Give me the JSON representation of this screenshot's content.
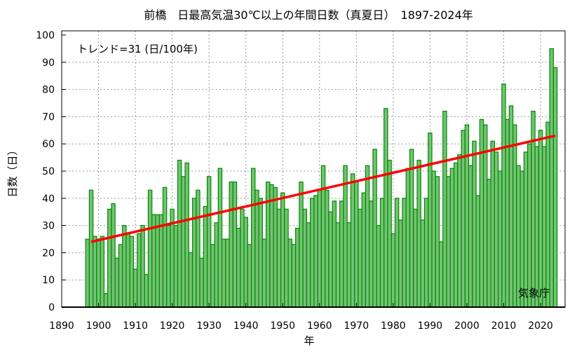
{
  "chart_data": {
    "type": "bar",
    "title": "前橋　日最高気温30℃以上の年間日数（真夏日）　1897-2024年",
    "xlabel": "年",
    "ylabel": "日数（日）",
    "xlim": [
      1890,
      2027
    ],
    "ylim": [
      0,
      100
    ],
    "xticks": [
      "1890",
      "1900",
      "1910",
      "1920",
      "1930",
      "1940",
      "1950",
      "1960",
      "1970",
      "1980",
      "1990",
      "2000",
      "2010",
      "2020"
    ],
    "yticks": [
      "0",
      "10",
      "20",
      "30",
      "40",
      "50",
      "60",
      "70",
      "80",
      "90",
      "100"
    ],
    "grid": true,
    "start_year": 1897,
    "values": [
      25,
      43,
      26,
      25,
      26,
      5,
      36,
      38,
      18,
      23,
      30,
      27,
      26,
      14,
      27,
      30,
      12,
      43,
      34,
      34,
      34,
      44,
      30,
      36,
      30,
      54,
      48,
      53,
      20,
      40,
      43,
      18,
      37,
      48,
      23,
      31,
      51,
      25,
      25,
      46,
      46,
      29,
      36,
      33,
      23,
      51,
      43,
      40,
      25,
      46,
      45,
      44,
      36,
      42,
      36,
      25,
      23,
      29,
      46,
      36,
      31,
      40,
      41,
      43,
      52,
      43,
      35,
      39,
      31,
      39,
      52,
      31,
      49,
      46,
      36,
      42,
      52,
      39,
      58,
      30,
      40,
      73,
      54,
      27,
      40,
      32,
      40,
      51,
      58,
      36,
      54,
      32,
      40,
      64,
      50,
      48,
      24,
      72,
      48,
      51,
      53,
      56,
      65,
      67,
      52,
      61,
      41,
      69,
      67,
      47,
      61,
      57,
      50,
      82,
      69,
      74,
      67,
      52,
      50,
      57,
      60,
      72,
      59,
      65,
      59,
      68,
      95,
      88
    ],
    "trend": {
      "label": "トレンド=31 (日/100年)",
      "per_100yr": 31,
      "start": [
        1898,
        24
      ],
      "end": [
        2024,
        63
      ]
    },
    "credit": "気象庁",
    "colors": {
      "bar_fill": "#74c274",
      "bar_stroke": "#008a00",
      "trend": "#ff0000",
      "grid": "#999999"
    }
  }
}
